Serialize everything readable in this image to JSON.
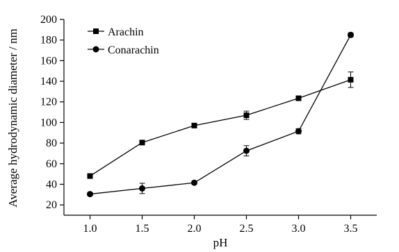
{
  "chart_data": {
    "type": "line",
    "title": "",
    "xlabel": "pH",
    "ylabel": "Average hydrodynamic diameter / nm",
    "x": [
      1.0,
      1.5,
      2.0,
      2.5,
      3.0,
      3.5
    ],
    "x_tick_labels": [
      "1.0",
      "1.5",
      "2.0",
      "2.5",
      "3.0",
      "3.5"
    ],
    "xlim": [
      0.75,
      3.75
    ],
    "ylim": [
      10,
      200
    ],
    "y_ticks": [
      20,
      40,
      60,
      80,
      100,
      120,
      140,
      160,
      180,
      200
    ],
    "grid": false,
    "legend_position": "top-left",
    "series": [
      {
        "name": "Arachin",
        "marker": "square",
        "color": "#000000",
        "values": [
          48,
          80.5,
          97,
          107,
          123.5,
          141.5
        ],
        "errors": [
          1.5,
          1.5,
          1.5,
          4,
          2,
          7.5
        ]
      },
      {
        "name": "Conarachin",
        "marker": "circle",
        "color": "#000000",
        "values": [
          30.5,
          36,
          41.5,
          72.5,
          91.5,
          185
        ],
        "errors": [
          1.5,
          5,
          1.5,
          5,
          2.5,
          2
        ]
      }
    ]
  }
}
